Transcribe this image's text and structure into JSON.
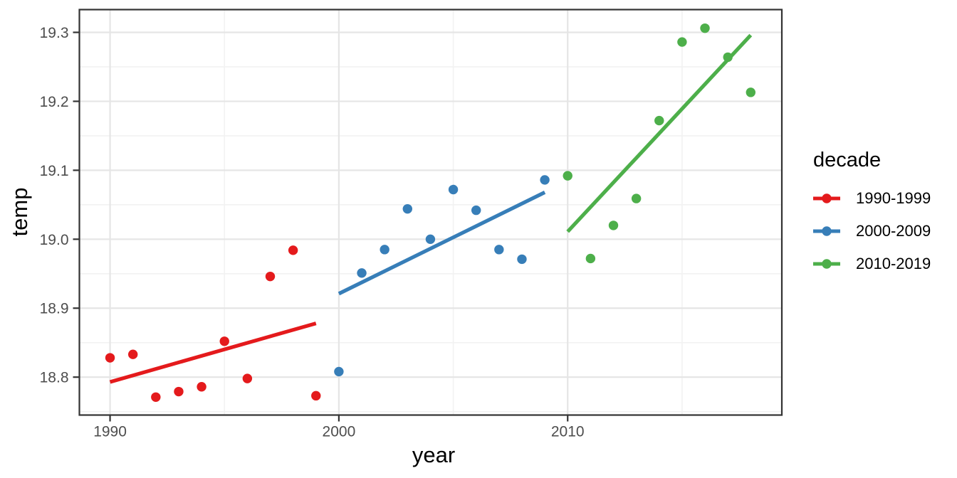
{
  "axes": {
    "x_label": "year",
    "y_label": "temp"
  },
  "legend": {
    "title": "decade",
    "entries": [
      {
        "label": "1990-1999",
        "color": "#E41A1C"
      },
      {
        "label": "2000-2009",
        "color": "#377EB8"
      },
      {
        "label": "2010-2019",
        "color": "#4DAF4A"
      }
    ]
  },
  "colors": {
    "red": "#E41A1C",
    "blue": "#377EB8",
    "green": "#4DAF4A",
    "grid_major": "#E5E5E5",
    "grid_minor": "#F2F2F2",
    "panel_border": "#333333",
    "tick_mark": "#333333",
    "tick_text": "#4D4D4D"
  },
  "chart_data": {
    "type": "scatter",
    "title": "",
    "xlabel": "year",
    "ylabel": "temp",
    "xlim": [
      1988.66,
      2019.36
    ],
    "ylim": [
      18.745,
      19.333
    ],
    "x_ticks": [
      1990,
      2000,
      2010
    ],
    "x_tick_labels": [
      "1990",
      "2000",
      "2010"
    ],
    "x_minor_ticks": [
      1995,
      2005,
      2015
    ],
    "y_ticks": [
      18.8,
      18.9,
      19.0,
      19.1,
      19.2,
      19.3
    ],
    "y_tick_labels": [
      "18.8",
      "18.9",
      "19.0",
      "19.1",
      "19.2",
      "19.3"
    ],
    "y_minor_ticks": [
      18.75,
      18.85,
      18.95,
      19.05,
      19.15,
      19.25
    ],
    "grid": true,
    "legend_position": "right",
    "series": [
      {
        "name": "1990-1999",
        "color": "#E41A1C",
        "points": [
          [
            1990,
            18.828
          ],
          [
            1991,
            18.833
          ],
          [
            1992,
            18.771
          ],
          [
            1993,
            18.779
          ],
          [
            1994,
            18.786
          ],
          [
            1995,
            18.852
          ],
          [
            1996,
            18.798
          ],
          [
            1997,
            18.946
          ],
          [
            1998,
            18.984
          ],
          [
            1999,
            18.773
          ]
        ],
        "trend": [
          [
            1990,
            18.793
          ],
          [
            1999,
            18.878
          ]
        ]
      },
      {
        "name": "2000-2009",
        "color": "#377EB8",
        "points": [
          [
            2000,
            18.808
          ],
          [
            2001,
            18.951
          ],
          [
            2002,
            18.985
          ],
          [
            2003,
            19.044
          ],
          [
            2004,
            19.0
          ],
          [
            2005,
            19.072
          ],
          [
            2006,
            19.042
          ],
          [
            2007,
            18.985
          ],
          [
            2008,
            18.971
          ],
          [
            2009,
            19.086
          ]
        ],
        "trend": [
          [
            2000,
            18.921
          ],
          [
            2009,
            19.068
          ]
        ]
      },
      {
        "name": "2010-2019",
        "color": "#4DAF4A",
        "points": [
          [
            2010,
            19.092
          ],
          [
            2011,
            18.972
          ],
          [
            2012,
            19.02
          ],
          [
            2013,
            19.059
          ],
          [
            2014,
            19.172
          ],
          [
            2015,
            19.286
          ],
          [
            2016,
            19.306
          ],
          [
            2017,
            19.264
          ],
          [
            2018,
            19.213
          ]
        ],
        "trend": [
          [
            2010,
            19.011
          ],
          [
            2018,
            19.296
          ]
        ]
      }
    ]
  }
}
